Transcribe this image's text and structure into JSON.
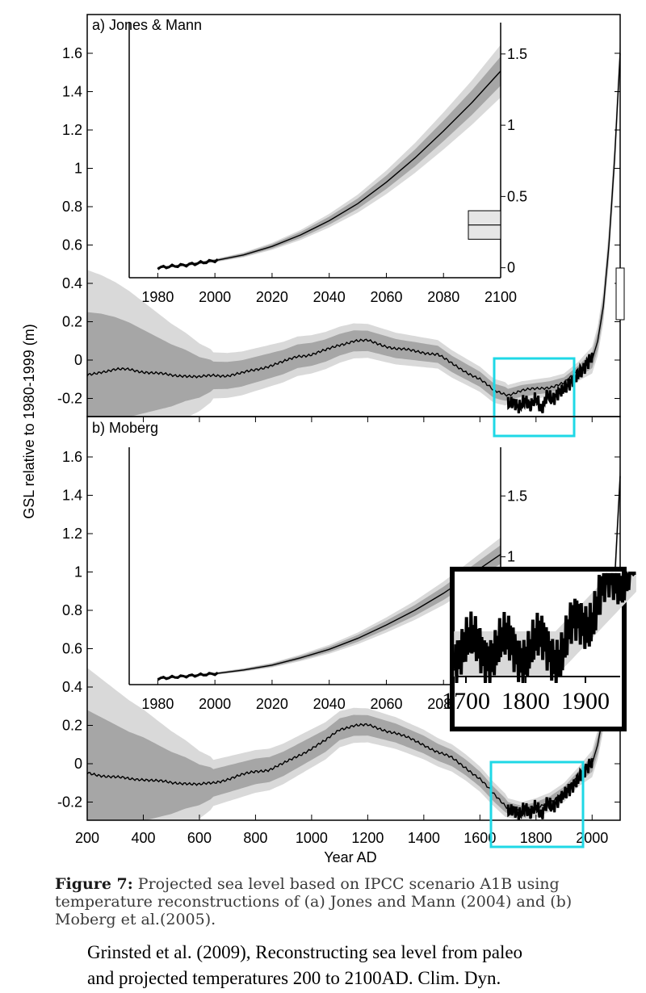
{
  "chart_data": [
    {
      "type": "line",
      "panel_label": "a) Jones & Mann",
      "xlabel": "",
      "ylabel": "GSL relative to 1980-1999 (m)",
      "xlim": [
        200,
        2100
      ],
      "ylim": [
        -0.3,
        1.75
      ],
      "y_ticks": [
        "1.6",
        "1.4",
        "1.2",
        "1",
        "0.8",
        "0.6",
        "0.4",
        "0.2",
        "0",
        "-0.2"
      ],
      "y_tick_values": [
        1.6,
        1.4,
        1.2,
        1,
        0.8,
        0.6,
        0.4,
        0.2,
        0,
        -0.2
      ],
      "series": [
        {
          "values_x": [
            200,
            250,
            300,
            350,
            400,
            450,
            500,
            550,
            600,
            650,
            700,
            750,
            800,
            850,
            900,
            950,
            1000,
            1050,
            1100,
            1150,
            1200,
            1250,
            1300,
            1350,
            1400,
            1450,
            1500,
            1550,
            1600,
            1650,
            1700,
            1750,
            1800,
            1850,
            1900,
            1950,
            2000,
            2020,
            2040,
            2060,
            2080,
            2100
          ],
          "values_y": [
            -0.08,
            -0.06,
            -0.05,
            -0.05,
            -0.06,
            -0.07,
            -0.08,
            -0.08,
            -0.09,
            -0.08,
            -0.08,
            -0.07,
            -0.05,
            -0.03,
            -0.01,
            0.02,
            0.03,
            0.05,
            0.08,
            0.1,
            0.1,
            0.08,
            0.06,
            0.05,
            0.04,
            0.03,
            -0.02,
            -0.06,
            -0.1,
            -0.16,
            -0.18,
            -0.16,
            -0.15,
            -0.14,
            -0.12,
            -0.06,
            0,
            0.1,
            0.28,
            0.6,
            1.05,
            1.6
          ]
        },
        {
          "values_x": [
            1700,
            1720,
            1740,
            1760,
            1780,
            1800,
            1820,
            1840,
            1860,
            1880,
            1900,
            1920,
            1940,
            1960,
            1980,
            2000
          ],
          "values_y": [
            -0.23,
            -0.22,
            -0.25,
            -0.21,
            -0.24,
            -0.2,
            -0.26,
            -0.18,
            -0.21,
            -0.17,
            -0.15,
            -0.12,
            -0.09,
            -0.06,
            -0.02,
            0.02
          ]
        }
      ],
      "inset": {
        "xlim": [
          1970,
          2100
        ],
        "ylim": [
          -0.07,
          1.72
        ],
        "x_ticks": [
          "1980",
          "2000",
          "2020",
          "2040",
          "2060",
          "2080",
          "2100"
        ],
        "x_tick_values": [
          1980,
          2000,
          2020,
          2040,
          2060,
          2080,
          2100
        ],
        "y_ticks": [
          "1.5",
          "1",
          "0.5",
          "0"
        ],
        "y_tick_values": [
          1.5,
          1,
          0.5,
          0
        ],
        "x": [
          1980,
          1990,
          2000,
          2010,
          2020,
          2030,
          2040,
          2050,
          2060,
          2070,
          2080,
          2090,
          2100
        ],
        "values": [
          0,
          0.02,
          0.05,
          0.09,
          0.15,
          0.23,
          0.33,
          0.45,
          0.6,
          0.77,
          0.96,
          1.16,
          1.38
        ],
        "bar_range": [
          0.2,
          0.4
        ],
        "bar_mid": 0.3
      }
    },
    {
      "type": "line",
      "panel_label": "b) Moberg",
      "xlabel": "Year AD",
      "ylabel": "GSL relative to 1980-1999 (m)",
      "xlim": [
        200,
        2100
      ],
      "ylim": [
        -0.3,
        1.75
      ],
      "x_ticks": [
        "200",
        "400",
        "600",
        "800",
        "1000",
        "1200",
        "1400",
        "1600",
        "1800",
        "2000"
      ],
      "x_tick_values": [
        200,
        400,
        600,
        800,
        1000,
        1200,
        1400,
        1600,
        1800,
        2000
      ],
      "y_ticks": [
        "1.6",
        "1.4",
        "1.2",
        "1",
        "0.8",
        "0.6",
        "0.4",
        "0.2",
        "0",
        "-0.2"
      ],
      "y_tick_values": [
        1.6,
        1.4,
        1.2,
        1,
        0.8,
        0.6,
        0.4,
        0.2,
        0,
        -0.2
      ],
      "series": [
        {
          "values_x": [
            200,
            250,
            300,
            350,
            400,
            450,
            500,
            550,
            600,
            650,
            700,
            750,
            800,
            850,
            900,
            950,
            1000,
            1050,
            1100,
            1150,
            1200,
            1250,
            1300,
            1350,
            1400,
            1450,
            1500,
            1550,
            1600,
            1650,
            1700,
            1750,
            1800,
            1850,
            1900,
            1950,
            2000,
            2020,
            2040,
            2060,
            2080,
            2100
          ],
          "values_y": [
            -0.05,
            -0.06,
            -0.07,
            -0.08,
            -0.08,
            -0.09,
            -0.1,
            -0.1,
            -0.11,
            -0.1,
            -0.08,
            -0.06,
            -0.04,
            -0.03,
            0,
            0.04,
            0.08,
            0.12,
            0.18,
            0.2,
            0.2,
            0.18,
            0.16,
            0.13,
            0.1,
            0.06,
            0.03,
            -0.02,
            -0.08,
            -0.16,
            -0.23,
            -0.25,
            -0.23,
            -0.2,
            -0.15,
            -0.07,
            0,
            0.1,
            0.26,
            0.55,
            0.95,
            1.5
          ]
        },
        {
          "values_x": [
            1700,
            1720,
            1740,
            1760,
            1780,
            1800,
            1820,
            1840,
            1860,
            1880,
            1900,
            1920,
            1940,
            1960,
            1980,
            2000
          ],
          "values_y": [
            -0.25,
            -0.24,
            -0.27,
            -0.23,
            -0.26,
            -0.22,
            -0.27,
            -0.2,
            -0.23,
            -0.19,
            -0.16,
            -0.13,
            -0.1,
            -0.06,
            -0.02,
            0.01
          ]
        }
      ],
      "inset": {
        "xlim": [
          1970,
          2100
        ],
        "ylim": [
          -0.05,
          1.9
        ],
        "x_ticks": [
          "1980",
          "2000",
          "2020",
          "2040",
          "2060",
          "2080"
        ],
        "x_tick_values": [
          1980,
          2000,
          2020,
          2040,
          2060,
          2080
        ],
        "y_ticks": [
          "1.5",
          "1"
        ],
        "y_tick_values": [
          1.5,
          1
        ],
        "x": [
          1980,
          1990,
          2000,
          2010,
          2020,
          2030,
          2040,
          2050,
          2060,
          2070,
          2080,
          2090,
          2100
        ],
        "values": [
          0,
          0.02,
          0.04,
          0.07,
          0.11,
          0.17,
          0.24,
          0.33,
          0.44,
          0.56,
          0.7,
          0.86,
          1.02
        ]
      },
      "zoom": {
        "x_ticks": [
          "1700",
          "1800",
          "1900"
        ],
        "x_tick_values": [
          1700,
          1800,
          1900
        ]
      }
    }
  ],
  "caption": {
    "label": "Figure 7:",
    "text": " Projected sea level based on IPCC scenario A1B using temperature reconstructions of (a) Jones and Mann (2004) and (b) Moberg et al.(2005)."
  },
  "citation": {
    "line1": "Grinsted et al. (2009), Reconstructing sea level from paleo",
    "line2": "and projected  temperatures 200 to 2100AD. Clim. Dyn."
  },
  "colors": {
    "outer_band": "#d9d9d9",
    "inner_band": "#a6a6a6",
    "line": "#000000",
    "highlight": "#1fd8e6"
  }
}
